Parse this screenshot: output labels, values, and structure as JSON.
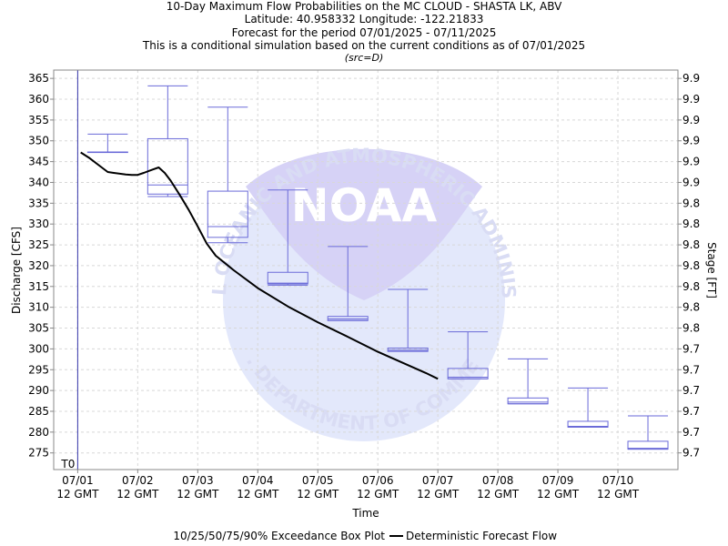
{
  "chart_data": {
    "type": "box",
    "title": "10-Day Maximum Flow Probabilities on the MC CLOUD - SHASTA LK, ABV",
    "subtitle_lines": [
      "Latitude: 40.958332 Longitude: -122.21833",
      "Forecast for the period 07/01/2025 - 07/11/2025",
      "This is a conditional simulation based on the current conditions as of 07/01/2025"
    ],
    "source_note": "(src=D)",
    "xlabel": "Time",
    "ylabel": "Discharge [CFS]",
    "y2label": "Stage [FT]",
    "t0_label": "T0",
    "ylim": [
      271,
      367
    ],
    "y_ticks": [
      275,
      280,
      285,
      290,
      295,
      300,
      305,
      310,
      315,
      320,
      325,
      330,
      335,
      340,
      345,
      350,
      355,
      360,
      365
    ],
    "y2_tick_labels": [
      "9.7",
      "9.7",
      "9.7",
      "9.7",
      "9.7",
      "9.7",
      "9.8",
      "9.8",
      "9.8",
      "9.8",
      "9.8",
      "9.8",
      "9.8",
      "9.9",
      "9.9",
      "9.9",
      "9.9",
      "9.9",
      "9.9"
    ],
    "x_range_days": [
      -0.4,
      10.0
    ],
    "x_ticks": [
      {
        "day": 0,
        "line1": "07/01",
        "line2": "12 GMT"
      },
      {
        "day": 1,
        "line1": "07/02",
        "line2": "12 GMT"
      },
      {
        "day": 2,
        "line1": "07/03",
        "line2": "12 GMT"
      },
      {
        "day": 3,
        "line1": "07/04",
        "line2": "12 GMT"
      },
      {
        "day": 4,
        "line1": "07/05",
        "line2": "12 GMT"
      },
      {
        "day": 5,
        "line1": "07/06",
        "line2": "12 GMT"
      },
      {
        "day": 6,
        "line1": "07/07",
        "line2": "12 GMT"
      },
      {
        "day": 7,
        "line1": "07/08",
        "line2": "12 GMT"
      },
      {
        "day": 8,
        "line1": "07/09",
        "line2": "12 GMT"
      },
      {
        "day": 9,
        "line1": "07/10",
        "line2": "12 GMT"
      }
    ],
    "t0_day": 0,
    "boxes": [
      {
        "day": 0.5,
        "p10": 347.3,
        "p25": 347.3,
        "p50": 347.3,
        "p75": 347.3,
        "p90": 351.6
      },
      {
        "day": 1.5,
        "p10": 336.6,
        "p25": 337.2,
        "p50": 339.4,
        "p75": 350.5,
        "p90": 363.2
      },
      {
        "day": 2.5,
        "p10": 325.5,
        "p25": 326.8,
        "p50": 329.4,
        "p75": 337.9,
        "p90": 358.1
      },
      {
        "day": 3.5,
        "p10": 315.3,
        "p25": 315.6,
        "p50": 315.8,
        "p75": 318.4,
        "p90": 338.2
      },
      {
        "day": 4.5,
        "p10": 306.8,
        "p25": 306.8,
        "p50": 307.2,
        "p75": 307.8,
        "p90": 324.6
      },
      {
        "day": 5.5,
        "p10": 299.4,
        "p25": 299.4,
        "p50": 299.7,
        "p75": 300.2,
        "p90": 314.3
      },
      {
        "day": 6.5,
        "p10": 292.8,
        "p25": 292.8,
        "p50": 293.2,
        "p75": 295.3,
        "p90": 304.1
      },
      {
        "day": 7.5,
        "p10": 286.8,
        "p25": 286.8,
        "p50": 287.2,
        "p75": 288.2,
        "p90": 297.6
      },
      {
        "day": 8.5,
        "p10": 281.2,
        "p25": 281.2,
        "p50": 281.4,
        "p75": 282.6,
        "p90": 290.6
      },
      {
        "day": 9.5,
        "p10": 275.9,
        "p25": 275.9,
        "p50": 276.1,
        "p75": 277.8,
        "p90": 283.9
      }
    ],
    "deterministic": {
      "x": [
        0.05,
        0.2,
        0.4,
        0.5,
        0.6,
        0.8,
        0.9,
        1.0,
        1.1,
        1.25,
        1.35,
        1.45,
        1.55,
        1.7,
        1.85,
        2.0,
        2.15,
        2.3,
        2.6,
        3.0,
        3.5,
        4.0,
        4.5,
        5.0,
        5.5,
        5.8,
        6.0
      ],
      "y": [
        347.2,
        345.8,
        343.6,
        342.5,
        342.3,
        341.9,
        341.8,
        341.8,
        342.3,
        343.1,
        343.6,
        342.3,
        340.4,
        337.0,
        333.4,
        329.4,
        325.3,
        322.4,
        318.9,
        314.6,
        310.2,
        306.4,
        302.9,
        299.3,
        296.1,
        294.2,
        292.8
      ]
    },
    "grid": true,
    "legend": {
      "position": "bottom",
      "box_label": "10/25/50/75/90% Exceedance Box Plot",
      "line_label": "Deterministic Forecast Flow"
    },
    "colors": {
      "box": "#6a6ad8",
      "line": "#000000",
      "grid": "#d8d8d8",
      "watermark": "#dde2f7",
      "t0": "#3333aa"
    },
    "watermark_text": {
      "top_arc": "NATIONAL OCEANIC AND ATMOSPHERIC ADMINISTRATION",
      "bottom_arc": "U.S. DEPARTMENT OF COMMERCE",
      "center": "NOAA"
    }
  }
}
